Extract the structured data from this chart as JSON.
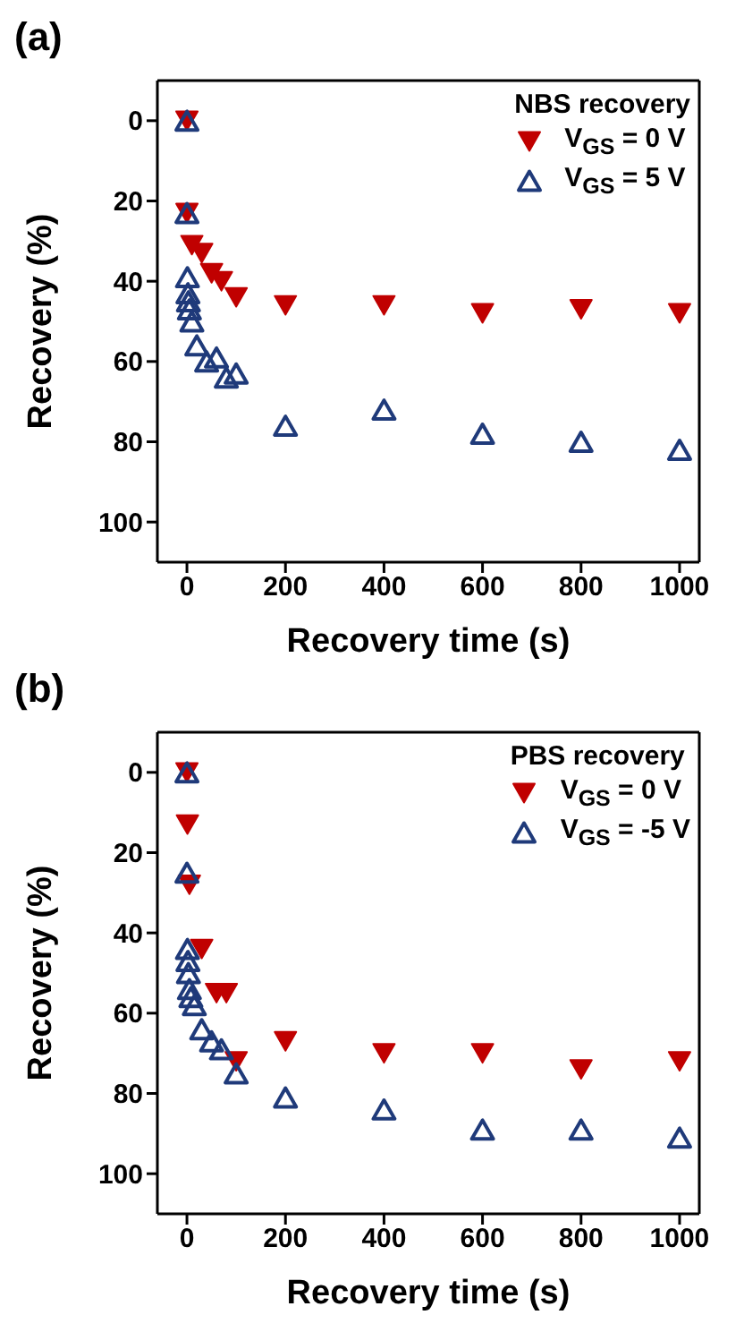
{
  "chart_data": [
    {
      "type": "scatter",
      "title": "(a)",
      "xlabel": "Recovery time (s)",
      "ylabel": "Recovery (%)",
      "legend_title": "NBS recovery",
      "legend": "top right",
      "marker": "triangle",
      "grid": false,
      "xlim": [
        -60,
        1040
      ],
      "xticks": [
        0,
        200,
        400,
        600,
        800,
        1000
      ],
      "ylim": [
        110,
        -10
      ],
      "yticks": [
        0,
        20,
        40,
        60,
        80,
        100
      ],
      "series": [
        {
          "name": "V$_{GS}$ = 0 V",
          "color": "#c00000",
          "x": [
            0,
            0,
            10,
            30,
            50,
            70,
            100,
            200,
            400,
            600,
            800,
            1000
          ],
          "values": [
            0,
            23,
            31,
            33,
            38,
            40,
            44,
            46,
            46,
            48,
            47,
            48
          ]
        },
        {
          "name": "V$_{GS}$ = 5 V",
          "color": "#1f3a7a",
          "x": [
            0,
            0,
            1,
            2,
            3,
            5,
            10,
            20,
            40,
            60,
            80,
            100,
            200,
            400,
            600,
            800,
            1000
          ],
          "values": [
            0,
            23,
            39,
            43,
            45,
            47,
            50,
            56,
            60,
            59,
            64,
            63,
            76,
            72,
            78,
            80,
            82
          ]
        }
      ]
    },
    {
      "type": "scatter",
      "title": "(b)",
      "xlabel": "Recovery time (s)",
      "ylabel": "Recovery (%)",
      "legend_title": "PBS recovery",
      "legend": "top right",
      "marker": "triangle",
      "grid": false,
      "xlim": [
        -60,
        1040
      ],
      "xticks": [
        0,
        200,
        400,
        600,
        800,
        1000
      ],
      "ylim": [
        110,
        -10
      ],
      "yticks": [
        0,
        20,
        40,
        60,
        80,
        100
      ],
      "series": [
        {
          "name": "V$_{GS}$ =  0 V",
          "color": "#c00000",
          "x": [
            0,
            1,
            5,
            30,
            60,
            80,
            100,
            200,
            400,
            600,
            800,
            1000
          ],
          "values": [
            0,
            13,
            28,
            44,
            55,
            55,
            72,
            67,
            70,
            70,
            74,
            72
          ]
        },
        {
          "name": "V$_{GS}$ = -5 V",
          "color": "#1f3a7a",
          "x": [
            0,
            0,
            1,
            2,
            3,
            5,
            8,
            15,
            30,
            50,
            70,
            100,
            200,
            400,
            600,
            800,
            1000
          ],
          "values": [
            0,
            25,
            44,
            47,
            50,
            54,
            56,
            58,
            64,
            67,
            69,
            75,
            81,
            84,
            89,
            89,
            91
          ]
        }
      ]
    }
  ]
}
